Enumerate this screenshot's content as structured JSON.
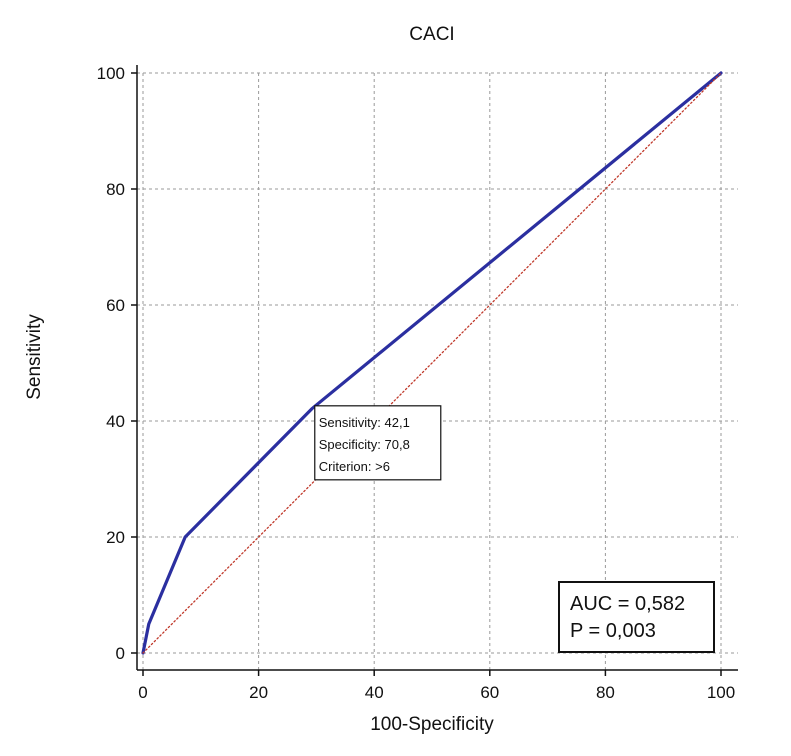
{
  "chart_data": {
    "type": "line",
    "title": "CACI",
    "xlabel": "100-Specificity",
    "ylabel": "Sensitivity",
    "xlim": [
      0,
      100
    ],
    "ylim": [
      0,
      100
    ],
    "xticks": [
      0,
      20,
      40,
      60,
      80,
      100
    ],
    "yticks": [
      0,
      20,
      40,
      60,
      80,
      100
    ],
    "grid": true,
    "series": [
      {
        "color": "#2b2fa0",
        "style": "solid",
        "x": [
          0,
          1,
          7.3,
          29.2,
          100
        ],
        "y": [
          0,
          5,
          20,
          42.1,
          100
        ]
      },
      {
        "color": "#c0392b",
        "style": "dotted",
        "x": [
          0,
          100
        ],
        "y": [
          0,
          100
        ]
      }
    ],
    "tooltip": {
      "x": 29.2,
      "y": 42.1,
      "lines": [
        "Sensitivity: 42,1",
        "Specificity: 70,8",
        "Criterion: >6"
      ]
    },
    "stats_box": {
      "position": "bottom-right",
      "lines": [
        "AUC = 0,582",
        "P = 0,003"
      ]
    }
  }
}
